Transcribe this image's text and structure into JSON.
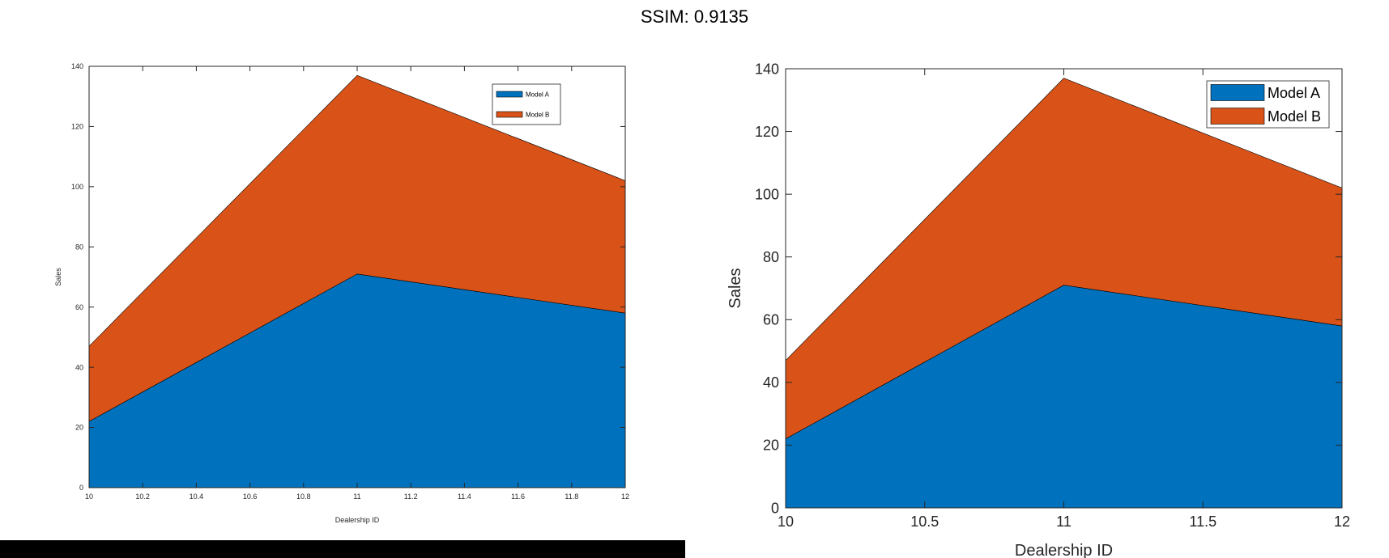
{
  "suptitle": "SSIM: 0.9135",
  "chart_data": [
    {
      "type": "area",
      "stacked": true,
      "x": [
        10,
        11,
        12
      ],
      "series": [
        {
          "name": "Model A",
          "values": [
            22,
            71,
            58
          ],
          "color": "#0072BD"
        },
        {
          "name": "Model B",
          "values": [
            25,
            66,
            44
          ],
          "color": "#D95319"
        }
      ],
      "xlabel": "Dealership ID",
      "ylabel": "Sales",
      "xlim": [
        10,
        12
      ],
      "ylim": [
        0,
        140
      ],
      "xticks": [
        "10",
        "10.2",
        "10.4",
        "10.6",
        "10.8",
        "11",
        "11.2",
        "11.4",
        "11.6",
        "11.8",
        "12"
      ],
      "yticks": [
        "0",
        "20",
        "40",
        "60",
        "80",
        "100",
        "120",
        "140"
      ],
      "legend": "top-right",
      "grid": false
    },
    {
      "type": "area",
      "stacked": true,
      "x": [
        10,
        11,
        12
      ],
      "series": [
        {
          "name": "Model A",
          "values": [
            22,
            71,
            58
          ],
          "color": "#0072BD"
        },
        {
          "name": "Model B",
          "values": [
            25,
            66,
            44
          ],
          "color": "#D95319"
        }
      ],
      "xlabel": "Dealership ID",
      "ylabel": "Sales",
      "xlim": [
        10,
        12
      ],
      "ylim": [
        0,
        140
      ],
      "xticks": [
        "10",
        "10.5",
        "11",
        "11.5",
        "12"
      ],
      "yticks": [
        "0",
        "20",
        "40",
        "60",
        "80",
        "100",
        "120",
        "140"
      ],
      "legend": "top-right",
      "grid": false
    }
  ]
}
